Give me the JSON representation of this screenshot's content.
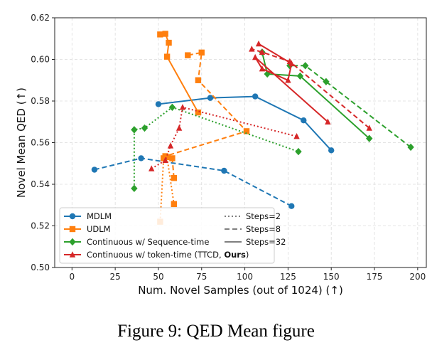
{
  "chart_data": {
    "type": "line",
    "xlabel": "Num. Novel Samples (out of 1024) (↑)",
    "ylabel": "Novel Mean QED (↑)",
    "xlim": [
      -10,
      205
    ],
    "ylim": [
      0.5,
      0.62
    ],
    "xticks": [
      0,
      25,
      50,
      75,
      100,
      125,
      150,
      175,
      200
    ],
    "yticks": [
      0.5,
      0.52,
      0.54,
      0.56,
      0.58,
      0.6,
      0.62
    ],
    "grid": true,
    "legend_position": "lower-left",
    "methods": [
      {
        "name": "MDLM",
        "color": "#1f77b4",
        "marker": "circle"
      },
      {
        "name": "UDLM",
        "color": "#ff7f0e",
        "marker": "square"
      },
      {
        "name": "Continuous w/ Sequence-time",
        "color": "#2ca02c",
        "marker": "diamond"
      },
      {
        "name": "Continuous w/ token-time (TTCD, ",
        "name_bold": "Ours",
        "name_end": ")",
        "color": "#d62728",
        "marker": "triangle"
      }
    ],
    "step_styles": [
      {
        "label": "Steps=2",
        "dash": "dotted"
      },
      {
        "label": "Steps=8",
        "dash": "dashed"
      },
      {
        "label": "Steps=32",
        "dash": "solid"
      }
    ],
    "series": [
      {
        "method": 0,
        "steps": 2,
        "points": []
      },
      {
        "method": 0,
        "steps": 8,
        "points": [
          [
            13,
            0.547
          ],
          [
            40,
            0.5525
          ],
          [
            88,
            0.5465
          ],
          [
            127,
            0.5295
          ]
        ]
      },
      {
        "method": 0,
        "steps": 32,
        "points": [
          [
            50,
            0.5785
          ],
          [
            80,
            0.5815
          ],
          [
            106,
            0.5822
          ],
          [
            134,
            0.5707
          ],
          [
            150,
            0.5563
          ]
        ]
      },
      {
        "method": 1,
        "steps": 2,
        "points": [
          [
            51,
            0.522
          ],
          [
            53,
            0.5525
          ],
          [
            55,
            0.553
          ],
          [
            59,
            0.5305
          ]
        ]
      },
      {
        "method": 1,
        "steps": 8,
        "points": [
          [
            59,
            0.543
          ],
          [
            58,
            0.5525
          ],
          [
            54,
            0.5535
          ],
          [
            101,
            0.5655
          ],
          [
            73,
            0.59
          ],
          [
            75,
            0.6033
          ],
          [
            67,
            0.602
          ]
        ]
      },
      {
        "method": 1,
        "steps": 32,
        "points": [
          [
            51,
            0.612
          ],
          [
            54,
            0.6123
          ],
          [
            56,
            0.608
          ],
          [
            55,
            0.6013
          ],
          [
            73,
            0.5745
          ]
        ]
      },
      {
        "method": 2,
        "steps": 2,
        "points": [
          [
            36,
            0.538
          ],
          [
            36,
            0.5662
          ],
          [
            42,
            0.567
          ],
          [
            58,
            0.577
          ],
          [
            131,
            0.5557
          ]
        ]
      },
      {
        "method": 2,
        "steps": 8,
        "points": [
          [
            196,
            0.5578
          ],
          [
            147,
            0.5893
          ],
          [
            135,
            0.597
          ],
          [
            126,
            0.597
          ]
        ]
      },
      {
        "method": 2,
        "steps": 32,
        "points": [
          [
            110,
            0.6035
          ],
          [
            113,
            0.593
          ],
          [
            132,
            0.592
          ],
          [
            172,
            0.562
          ]
        ]
      },
      {
        "method": 3,
        "steps": 2,
        "points": [
          [
            46,
            0.5475
          ],
          [
            54,
            0.5515
          ],
          [
            57,
            0.5585
          ],
          [
            62,
            0.567
          ],
          [
            64,
            0.577
          ],
          [
            130,
            0.563
          ]
        ]
      },
      {
        "method": 3,
        "steps": 8,
        "points": [
          [
            172,
            0.567
          ],
          [
            126,
            0.599
          ],
          [
            110,
            0.6035
          ],
          [
            104,
            0.605
          ]
        ]
      },
      {
        "method": 3,
        "steps": 32,
        "points": [
          [
            108,
            0.6075
          ],
          [
            127,
            0.598
          ],
          [
            125,
            0.59
          ],
          [
            110,
            0.5955
          ],
          [
            106,
            0.601
          ],
          [
            148,
            0.57
          ]
        ]
      }
    ]
  },
  "caption": "Figure 9: QED Mean figure"
}
